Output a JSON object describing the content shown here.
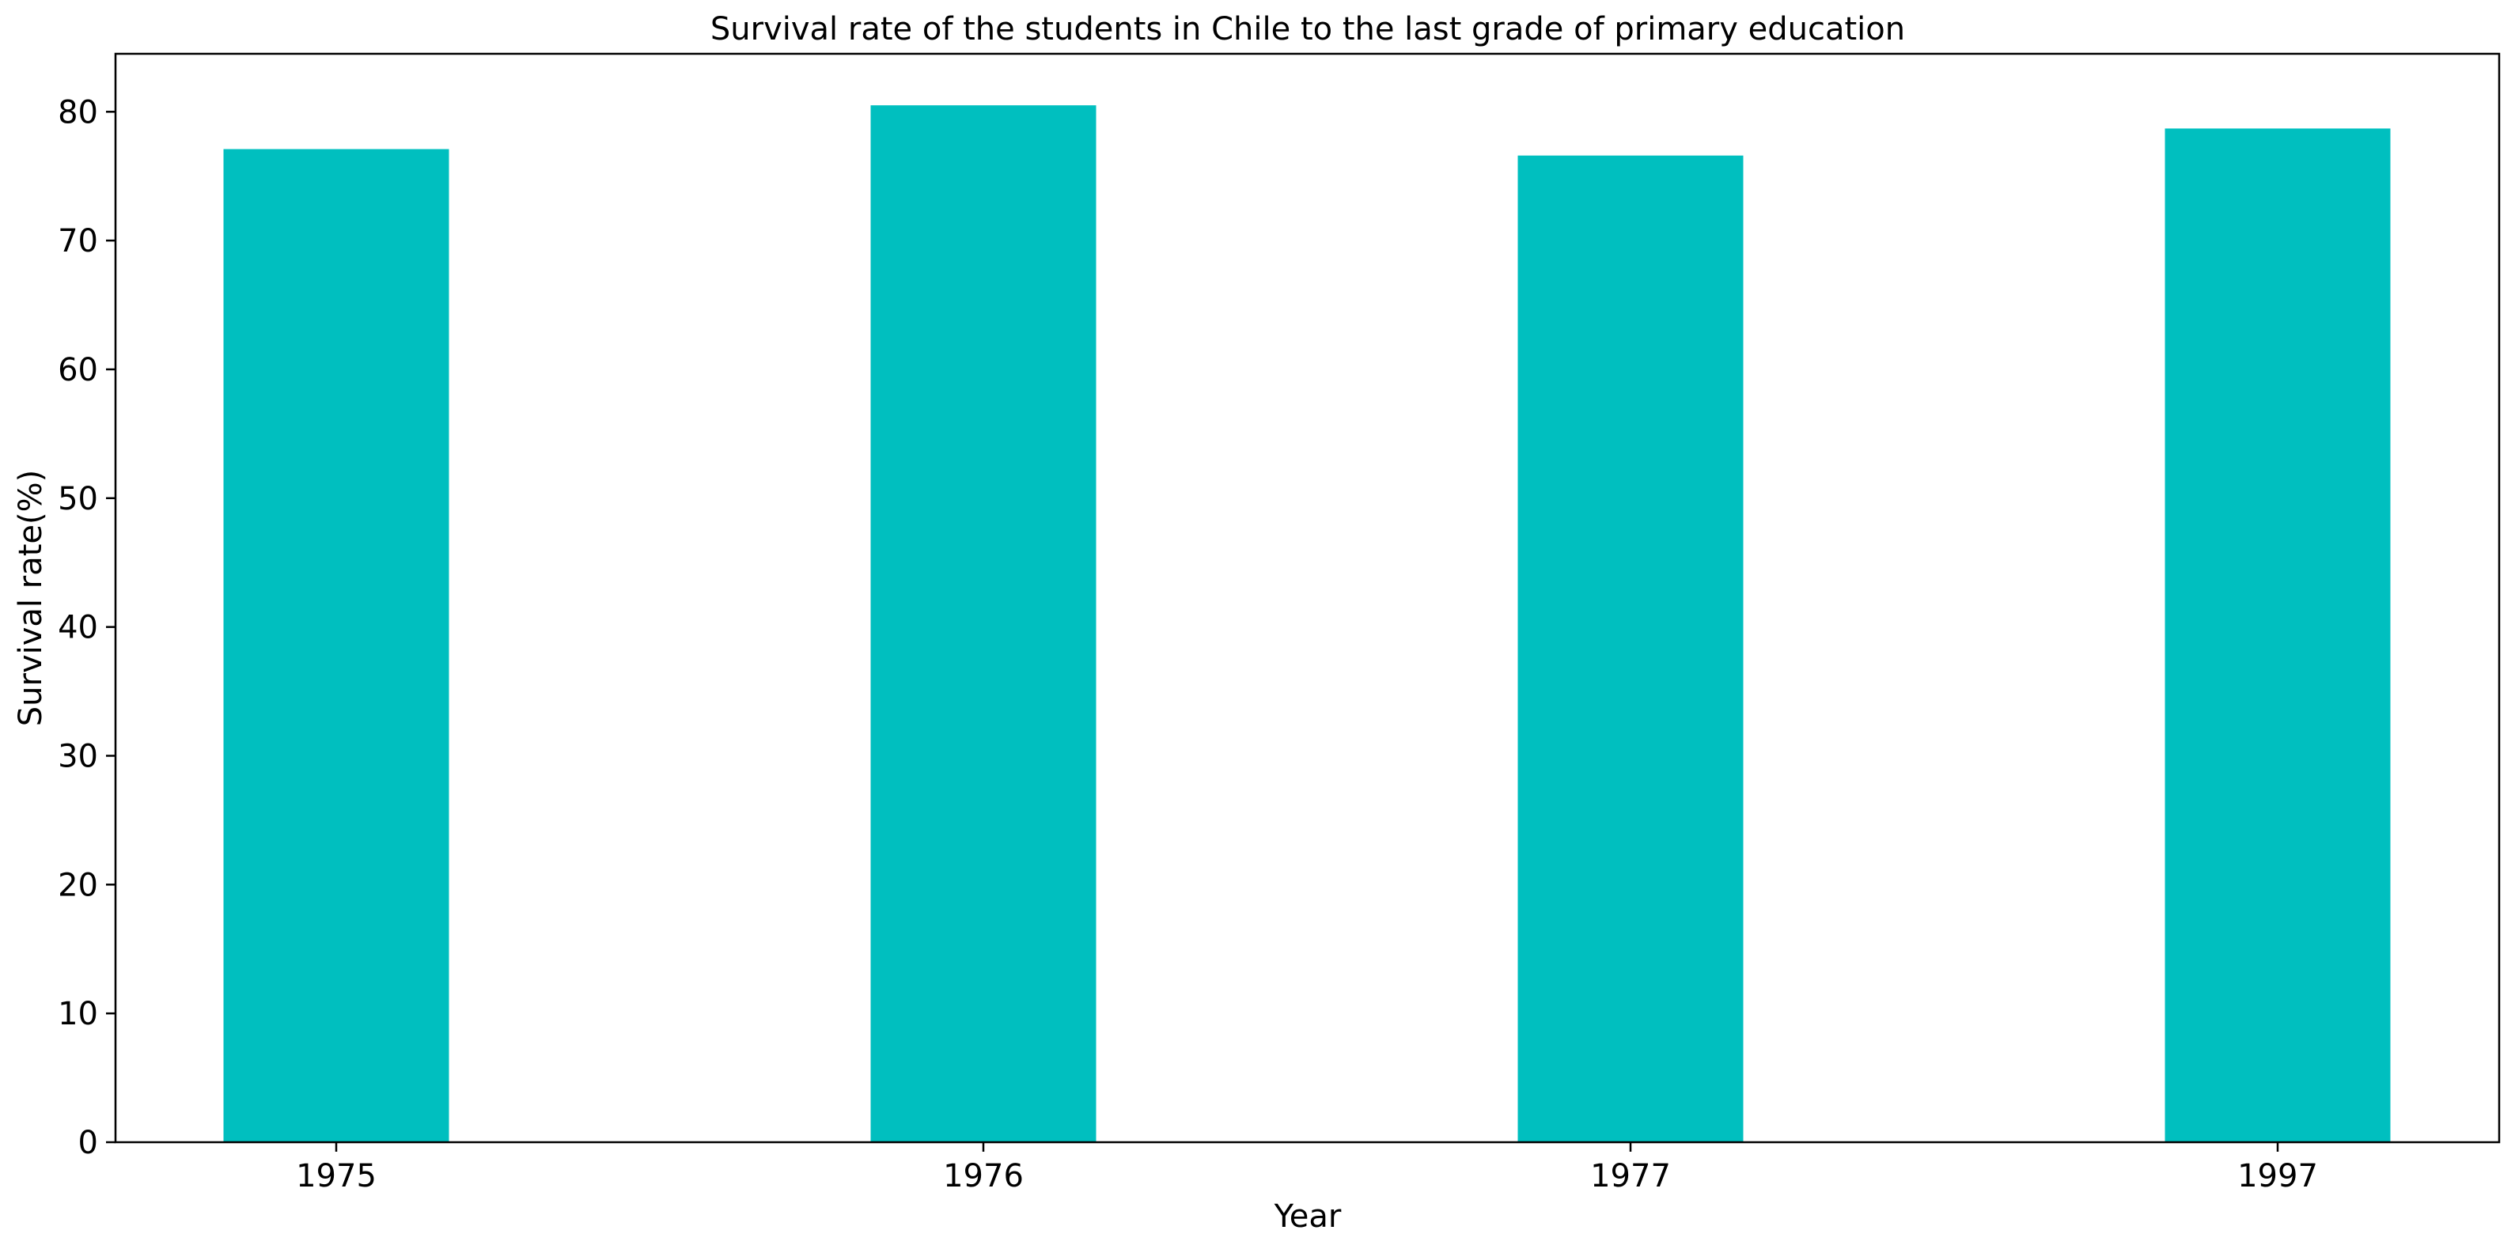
{
  "chart_data": {
    "type": "bar",
    "title": "Survival rate of the students in Chile to the last grade of primary education",
    "xlabel": "Year",
    "ylabel": "Survival rate(%)",
    "categories": [
      "1975",
      "1976",
      "1977",
      "1997"
    ],
    "series": [
      {
        "values": [
          77.1,
          80.5,
          76.6,
          78.7
        ]
      }
    ],
    "ylim": [
      0,
      84.5
    ],
    "yticks": [
      0,
      10,
      20,
      30,
      40,
      50,
      60,
      70,
      80
    ],
    "bar_color": "#00bfbf",
    "grid": false,
    "legend": "none"
  }
}
